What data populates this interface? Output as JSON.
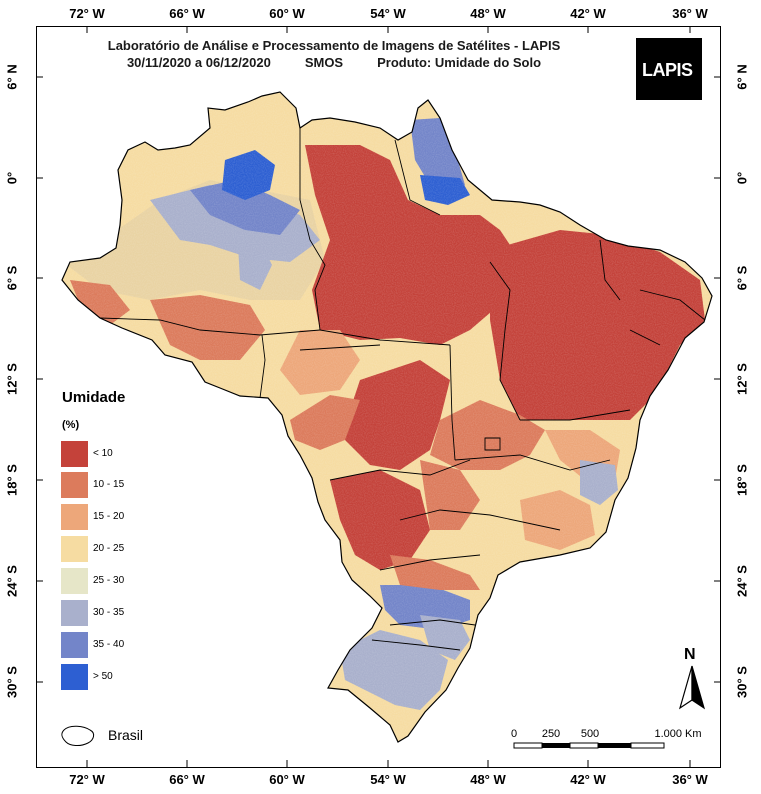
{
  "title": {
    "line1": "Laboratório de Análise e Processamento de Imagens de Satélites - LAPIS",
    "period": "30/11/2020  a  06/12/2020",
    "sensor": "SMOS",
    "product": "Produto: Umidade do Solo"
  },
  "logo": {
    "text": "LAPIS",
    "icon": "satellite-icon"
  },
  "axes": {
    "longitude_ticks": [
      "72° W",
      "66° W",
      "60° W",
      "54° W",
      "48° W",
      "42° W",
      "36° W"
    ],
    "latitude_ticks": [
      "6° N",
      "0°",
      "6° S",
      "12° S",
      "18° S",
      "24° S",
      "30° S"
    ]
  },
  "legend": {
    "title": "Umidade",
    "unit": "(%)",
    "items": [
      {
        "label": "< 10",
        "color": "#c4423a"
      },
      {
        "label": "10 - 15",
        "color": "#dc7b5c"
      },
      {
        "label": "15 - 20",
        "color": "#eda77a"
      },
      {
        "label": "20 - 25",
        "color": "#f6dca2"
      },
      {
        "label": "25 - 30",
        "color": "#e6e6c8"
      },
      {
        "label": "30 - 35",
        "color": "#a9b0cc"
      },
      {
        "label": "35 - 40",
        "color": "#7385c9"
      },
      {
        "label": "> 50",
        "color": "#2d5fd2"
      }
    ],
    "boundary_label": "Brasil"
  },
  "scale_bar": {
    "labels": [
      "0",
      "250",
      "500",
      "1.000 Km"
    ]
  },
  "north_arrow": {
    "label": "N"
  }
}
